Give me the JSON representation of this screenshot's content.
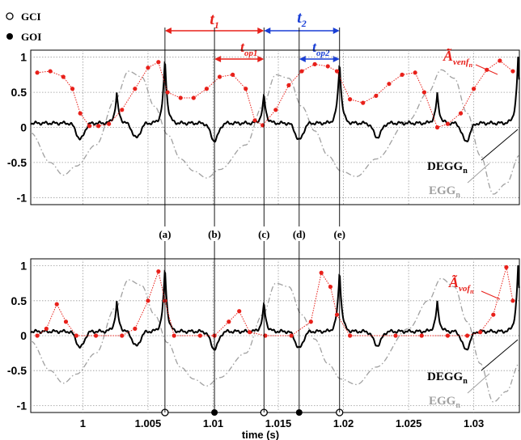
{
  "legend": {
    "gci_label": "GCI",
    "goi_label": "GOI"
  },
  "annotations": {
    "t1": "t",
    "t1_sub": "1",
    "t2": "t",
    "t2_sub": "2",
    "top1": "t",
    "top1_sub": "op1",
    "top2": "t",
    "top2_sub": "op2",
    "event_labels": [
      "(a)",
      "(b)",
      "(c)",
      "(d)",
      "(e)"
    ],
    "event_times": [
      1.0063,
      1.0101,
      1.0139,
      1.0166,
      1.0197
    ]
  },
  "colors": {
    "red": "#e8201a",
    "blue": "#1a3fd6",
    "egg_gray": "#a0a0a0",
    "grid": "#9a9a9a"
  },
  "chart_data": [
    {
      "type": "line",
      "panel": "top",
      "xlim": [
        0.996,
        1.0335
      ],
      "ylim": [
        -1.1,
        1.1
      ],
      "yticks": [
        1,
        0.5,
        0,
        -0.5,
        -1
      ],
      "ytick_labels": [
        "1",
        "0.5",
        "0",
        "-0.5",
        "-1"
      ],
      "xgrid": [
        1.0,
        1.005,
        1.01,
        1.015,
        1.02,
        1.025,
        1.03
      ],
      "series": [
        {
          "name": "DEGG",
          "sub": "n",
          "label_color": "#000000",
          "peaks": [
            {
              "x": 1.0026,
              "h": 0.48
            },
            {
              "x": 1.0063,
              "h": 1.0
            },
            {
              "x": 1.0139,
              "h": 0.47
            },
            {
              "x": 1.0197,
              "h": 0.97
            },
            {
              "x": 1.0272,
              "h": 0.48
            },
            {
              "x": 1.0334,
              "h": 1.0
            }
          ],
          "dips": [
            {
              "x": 0.9998,
              "h": -0.17
            },
            {
              "x": 1.0041,
              "h": -0.15
            },
            {
              "x": 1.0101,
              "h": -0.19
            },
            {
              "x": 1.0166,
              "h": -0.18
            },
            {
              "x": 1.0226,
              "h": -0.14
            },
            {
              "x": 1.0294,
              "h": -0.2
            }
          ],
          "baseline": 0.06
        },
        {
          "name": "EGG",
          "sub": "n",
          "label_color": "#a0a0a0",
          "points": [
            [
              0.996,
              -0.08
            ],
            [
              0.9975,
              -0.5
            ],
            [
              0.9985,
              -0.68
            ],
            [
              0.9995,
              -0.55
            ],
            [
              1.001,
              -0.25
            ],
            [
              1.0025,
              0.4
            ],
            [
              1.0035,
              0.8
            ],
            [
              1.0045,
              0.72
            ],
            [
              1.0055,
              0.3
            ],
            [
              1.0065,
              -0.1
            ],
            [
              1.0075,
              -0.45
            ],
            [
              1.0085,
              -0.62
            ],
            [
              1.0095,
              -0.72
            ],
            [
              1.0105,
              -0.6
            ],
            [
              1.0125,
              -0.25
            ],
            [
              1.0138,
              0.3
            ],
            [
              1.0148,
              0.75
            ],
            [
              1.0158,
              0.7
            ],
            [
              1.0168,
              0.3
            ],
            [
              1.0178,
              -0.05
            ],
            [
              1.0188,
              -0.4
            ],
            [
              1.0198,
              -0.62
            ],
            [
              1.021,
              -0.7
            ],
            [
              1.0225,
              -0.45
            ],
            [
              1.025,
              0.1
            ],
            [
              1.0265,
              0.5
            ],
            [
              1.0275,
              0.82
            ],
            [
              1.0285,
              0.7
            ],
            [
              1.0295,
              0.2
            ],
            [
              1.0305,
              -0.4
            ],
            [
              1.0315,
              -0.95
            ],
            [
              1.0325,
              -0.8
            ],
            [
              1.0335,
              -0.4
            ]
          ]
        },
        {
          "name": "Ã",
          "sub": "venf",
          "sub2": "n",
          "label_color": "#e8201a",
          "points": [
            [
              0.9965,
              0.78
            ],
            [
              0.9975,
              0.8
            ],
            [
              0.9985,
              0.72
            ],
            [
              0.9992,
              0.55
            ],
            [
              0.9998,
              0.2
            ],
            [
              1.0005,
              0.02
            ],
            [
              1.0012,
              0.02
            ],
            [
              1.002,
              0.05
            ],
            [
              1.003,
              0.25
            ],
            [
              1.004,
              0.55
            ],
            [
              1.005,
              0.85
            ],
            [
              1.0058,
              0.93
            ],
            [
              1.0065,
              0.5
            ],
            [
              1.0075,
              0.42
            ],
            [
              1.0085,
              0.42
            ],
            [
              1.0095,
              0.55
            ],
            [
              1.0105,
              0.72
            ],
            [
              1.0115,
              0.75
            ],
            [
              1.0125,
              0.55
            ],
            [
              1.0132,
              0.1
            ],
            [
              1.0138,
              0.03
            ],
            [
              1.0148,
              0.25
            ],
            [
              1.0158,
              0.6
            ],
            [
              1.0168,
              0.8
            ],
            [
              1.0178,
              0.9
            ],
            [
              1.0188,
              0.87
            ],
            [
              1.0195,
              0.8
            ],
            [
              1.0205,
              0.4
            ],
            [
              1.0215,
              0.35
            ],
            [
              1.0225,
              0.45
            ],
            [
              1.0235,
              0.62
            ],
            [
              1.0245,
              0.75
            ],
            [
              1.0255,
              0.78
            ],
            [
              1.0262,
              0.5
            ],
            [
              1.0272,
              0.0
            ],
            [
              1.028,
              0.05
            ],
            [
              1.029,
              0.2
            ],
            [
              1.03,
              0.55
            ],
            [
              1.031,
              0.82
            ],
            [
              1.032,
              0.95
            ],
            [
              1.033,
              0.8
            ]
          ]
        }
      ]
    },
    {
      "type": "line",
      "panel": "bottom",
      "xlim": [
        0.996,
        1.0335
      ],
      "ylim": [
        -1.1,
        1.1
      ],
      "yticks": [
        1,
        0.5,
        0,
        -0.5,
        -1
      ],
      "ytick_labels": [
        "1",
        "0.5",
        "0",
        "-0.5",
        "-1"
      ],
      "xticks": [
        1.0,
        1.005,
        1.01,
        1.015,
        1.02,
        1.025,
        1.03
      ],
      "xtick_labels": [
        "1",
        "1.005",
        "1.01",
        "1.015",
        "1.02",
        "1.025",
        "1.03"
      ],
      "xlabel": "time (s)",
      "gci_markers": [
        1.0063,
        1.0139,
        1.0197
      ],
      "goi_markers": [
        1.0101,
        1.0166
      ],
      "series": [
        {
          "name": "DEGG",
          "sub": "n",
          "label_color": "#000000"
        },
        {
          "name": "EGG",
          "sub": "n",
          "label_color": "#a0a0a0"
        },
        {
          "name": "Ã",
          "sub": "vof",
          "sub2": "n",
          "label_color": "#e8201a",
          "points": [
            [
              0.9965,
              0.0
            ],
            [
              0.9972,
              0.1
            ],
            [
              0.998,
              0.45
            ],
            [
              0.9987,
              0.2
            ],
            [
              0.9995,
              0.0
            ],
            [
              1.001,
              0.0
            ],
            [
              1.003,
              0.0
            ],
            [
              1.004,
              0.1
            ],
            [
              1.005,
              0.5
            ],
            [
              1.0058,
              0.92
            ],
            [
              1.0063,
              0.5
            ],
            [
              1.007,
              0.0
            ],
            [
              1.009,
              0.0
            ],
            [
              1.0101,
              0.0
            ],
            [
              1.0112,
              0.2
            ],
            [
              1.012,
              0.35
            ],
            [
              1.0128,
              0.05
            ],
            [
              1.014,
              0.0
            ],
            [
              1.016,
              0.0
            ],
            [
              1.0175,
              0.2
            ],
            [
              1.0183,
              0.9
            ],
            [
              1.019,
              0.7
            ],
            [
              1.0195,
              0.3
            ],
            [
              1.0205,
              0.0
            ],
            [
              1.024,
              0.0
            ],
            [
              1.026,
              0.0
            ],
            [
              1.028,
              0.0
            ],
            [
              1.0295,
              0.0
            ],
            [
              1.0305,
              0.05
            ],
            [
              1.0315,
              0.3
            ],
            [
              1.0325,
              0.98
            ],
            [
              1.033,
              0.5
            ]
          ]
        }
      ]
    }
  ],
  "labels": {
    "top_red_label": "Ã",
    "top_red_sub": "venf",
    "top_red_sub2": "n",
    "bottom_red_label": "Ã",
    "bottom_red_sub": "vof",
    "bottom_red_sub2": "n",
    "degg": "DEGG",
    "degg_sub": "n",
    "egg": "EGG",
    "egg_sub": "n",
    "xlabel": "time (s)"
  }
}
